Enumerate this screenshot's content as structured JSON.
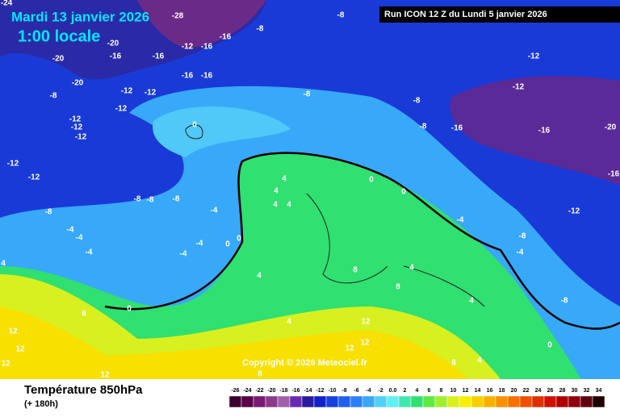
{
  "header": {
    "date": "Mardi 13 janvier 2026",
    "time": "1:00 locale",
    "run": "Run ICON 12 Z du Lundi 5 janvier 2026"
  },
  "copyright": "Copyright © 2026 Meteociel.fr",
  "footer": {
    "title": "Température 850hPa",
    "lead": "(+ 180h)"
  },
  "colorbar": {
    "levels": [
      -26,
      -24,
      -22,
      -20,
      -18,
      -16,
      -14,
      -12,
      -10,
      -8,
      -6,
      -4,
      -2,
      {
        "value": 0,
        "label": "0.0"
      },
      2,
      4,
      6,
      8,
      10,
      12,
      14,
      16,
      18,
      20,
      22,
      24,
      26,
      28,
      30,
      32,
      34
    ],
    "colors": [
      "#3a0030",
      "#5a0048",
      "#7a1a70",
      "#8a3a88",
      "#a060a8",
      "#6a2ab0",
      "#2a1aa0",
      "#1020c8",
      "#1840e0",
      "#2060f0",
      "#2a80f8",
      "#38a8f8",
      "#50d0f8",
      "#60f0f0",
      "#40e8b0",
      "#30e070",
      "#60e840",
      "#a0f030",
      "#d8f020",
      "#f8f000",
      "#f8d000",
      "#f8b000",
      "#f89000",
      "#f87000",
      "#f05000",
      "#e03000",
      "#d01000",
      "#b00000",
      "#900010",
      "#600010",
      "#200000"
    ]
  },
  "contour_labels": [
    "-24",
    "-28",
    "-8",
    "-8",
    "-16",
    "-20",
    "-12",
    "-16",
    "-16",
    "-16",
    "-20",
    "-16",
    "-16",
    "-20",
    "-12",
    "-12",
    "-8",
    "-12",
    "-12",
    "-12",
    "-12",
    "-8",
    "-8",
    "-8",
    "-16",
    "-12",
    "-12",
    "-16",
    "-20",
    "-16",
    "0",
    "-12",
    "-12",
    "-8",
    "-8",
    "-8",
    "-8",
    "4",
    "4",
    "4",
    "4",
    "-4",
    "-4",
    "-4",
    "0",
    "0",
    "0",
    "0",
    "-4",
    "-12",
    "-8",
    "-4",
    "-8",
    "4",
    "8",
    "4",
    "8",
    "4",
    "4",
    "0",
    "6",
    "12",
    "12",
    "12",
    "12",
    "12",
    "12",
    "12",
    "8",
    "4",
    "8",
    "0",
    "4",
    "-4",
    "-4",
    "-4"
  ]
}
